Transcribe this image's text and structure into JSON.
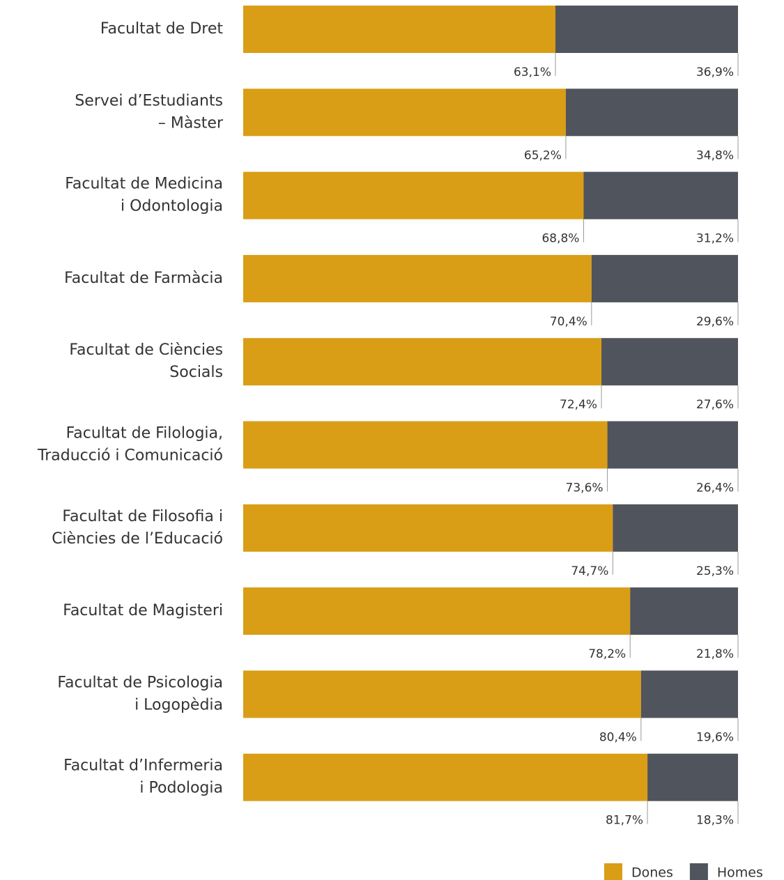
{
  "chart_data": {
    "type": "stacked-barh",
    "categories": [
      [
        "Facultat de Dret"
      ],
      [
        "Servei d’Estudiants",
        "– Màster"
      ],
      [
        "Facultat de Medicina",
        "i Odontologia"
      ],
      [
        "Facultat de Farmàcia"
      ],
      [
        "Facultat de Ciències",
        "Socials"
      ],
      [
        "Facultat de Filologia,",
        "Traducció i Comunicació"
      ],
      [
        "Facultat de Filosofia i",
        "Ciències de l’Educació"
      ],
      [
        "Facultat de Magisteri"
      ],
      [
        "Facultat de Psicologia",
        "i Logopèdia"
      ],
      [
        "Facultat d’Infermeria",
        "i Podologia"
      ]
    ],
    "series": [
      {
        "name": "Dones",
        "color": "#d99e16",
        "values": [
          63.1,
          65.2,
          68.8,
          70.4,
          72.4,
          73.6,
          74.7,
          78.2,
          80.4,
          81.7
        ],
        "value_labels": [
          "63,1%",
          "65,2%",
          "68,8%",
          "70,4%",
          "72,4%",
          "73,6%",
          "74,7%",
          "78,2%",
          "80,4%",
          "81,7%"
        ]
      },
      {
        "name": "Homes",
        "color": "#50545c",
        "values": [
          36.9,
          34.8,
          31.2,
          29.6,
          27.6,
          26.4,
          25.3,
          21.8,
          19.6,
          18.3
        ],
        "value_labels": [
          "36,9%",
          "34,8%",
          "31,2%",
          "29,6%",
          "27,6%",
          "26,4%",
          "25,3%",
          "21,8%",
          "19,6%",
          "18,3%"
        ]
      }
    ],
    "xlim": [
      0,
      100
    ],
    "legend": "bottom-right"
  }
}
